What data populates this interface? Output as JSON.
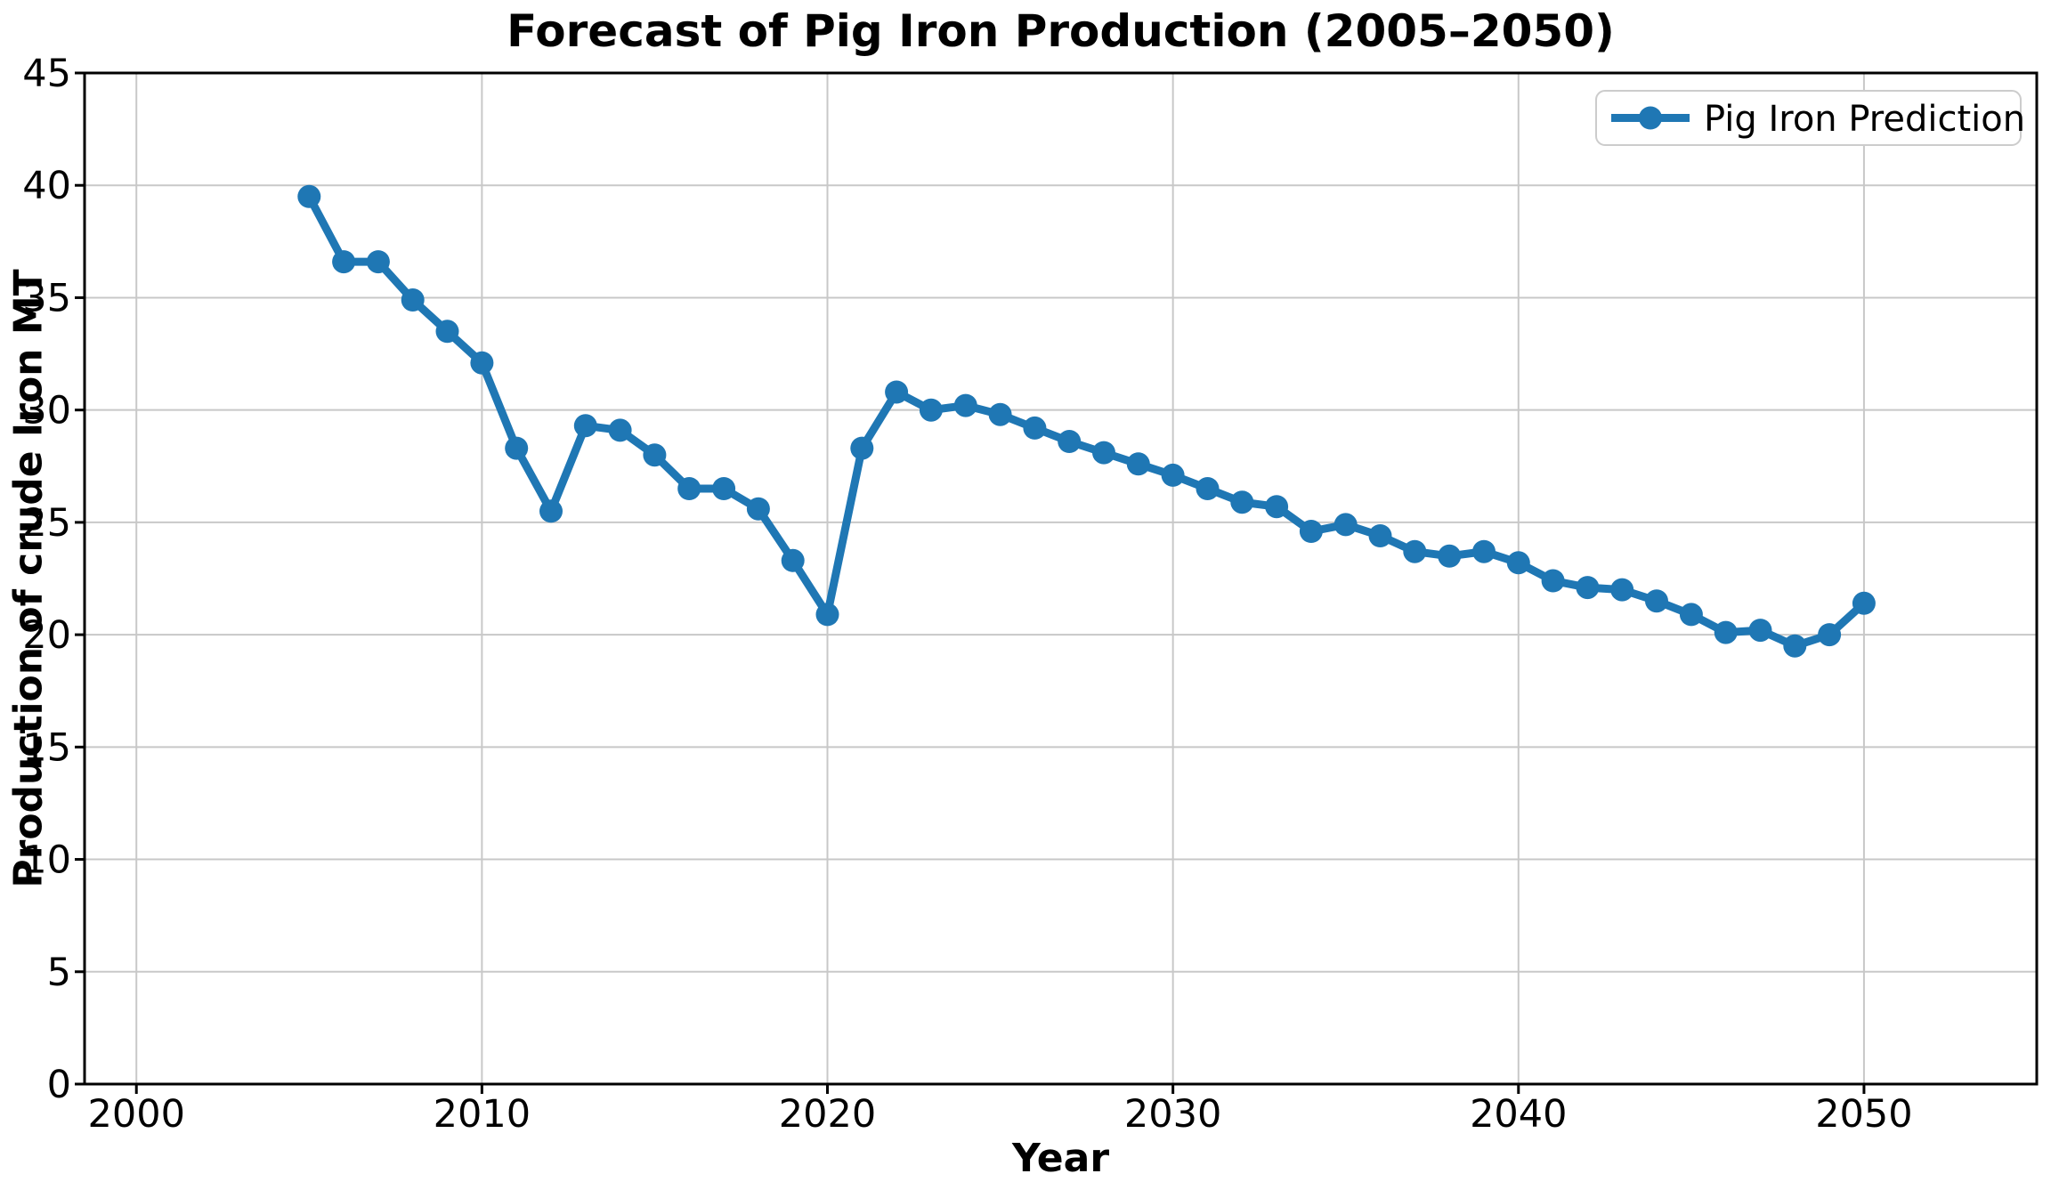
{
  "chart_data": {
    "type": "line",
    "title": "Forecast of Pig Iron Production (2005–2050)",
    "xlabel": "Year",
    "ylabel": "Production of crude Iron MT",
    "legend": {
      "label": "Pig Iron Prediction",
      "position": "upper right",
      "marker": "circle",
      "border_color": "#cccccc",
      "background": "#ffffff"
    },
    "x": [
      2005,
      2006,
      2007,
      2008,
      2009,
      2010,
      2011,
      2012,
      2013,
      2014,
      2015,
      2016,
      2017,
      2018,
      2019,
      2020,
      2021,
      2022,
      2023,
      2024,
      2025,
      2026,
      2027,
      2028,
      2029,
      2030,
      2031,
      2032,
      2033,
      2034,
      2035,
      2036,
      2037,
      2038,
      2039,
      2040,
      2041,
      2042,
      2043,
      2044,
      2045,
      2046,
      2047,
      2048,
      2049,
      2050
    ],
    "series": [
      {
        "name": "Pig Iron Prediction",
        "values": [
          39.5,
          36.6,
          36.6,
          34.9,
          33.5,
          32.1,
          28.3,
          25.5,
          29.3,
          29.1,
          28.0,
          26.5,
          26.5,
          25.6,
          23.3,
          20.9,
          28.3,
          30.8,
          30.0,
          30.2,
          29.8,
          29.2,
          28.6,
          28.1,
          27.6,
          27.1,
          26.5,
          25.9,
          25.7,
          24.6,
          24.9,
          24.4,
          23.7,
          23.5,
          23.7,
          23.2,
          22.4,
          22.1,
          22.0,
          21.5,
          20.9,
          20.1,
          20.2,
          19.5,
          20.0,
          21.4
        ]
      }
    ],
    "xlim": [
      1998.5,
      2055.0
    ],
    "ylim": [
      0,
      45
    ],
    "xticks": [
      2000,
      2010,
      2020,
      2030,
      2040,
      2050
    ],
    "yticks": [
      0,
      5,
      10,
      15,
      20,
      25,
      30,
      35,
      40,
      45
    ],
    "grid": true,
    "colors": {
      "line": "#1f77b4",
      "marker": "#1f77b4",
      "grid": "#c8c8c8",
      "axis": "#000000",
      "text": "#000000",
      "background": "#ffffff"
    }
  }
}
